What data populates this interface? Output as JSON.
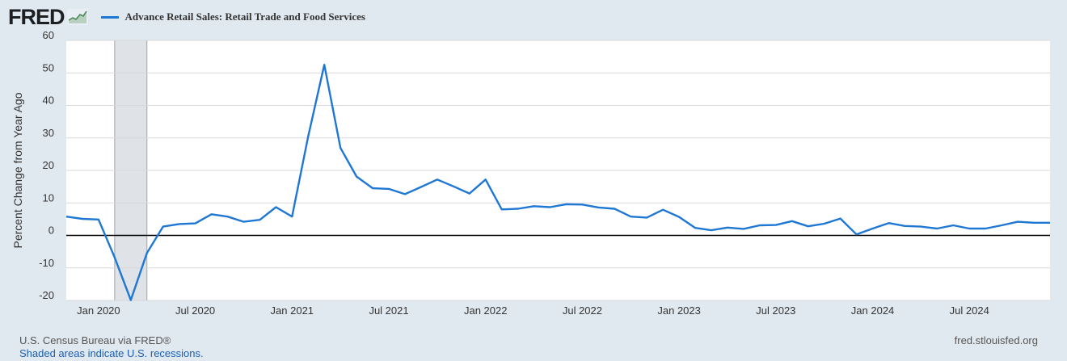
{
  "header": {
    "logo_text": "FRED",
    "logo_icon": "fred-logo-line-chart-icon"
  },
  "footer": {
    "source": "U.S. Census Bureau via FRED®",
    "note": "Shaded areas indicate U.S. recessions.",
    "site": "fred.stlouisfed.org"
  },
  "colors": {
    "line": "#1f77d4",
    "recession": "#dfe3e7",
    "background": "#e1e9f0",
    "plot": "#ffffff",
    "grid": "#d8d8d8",
    "zero_line": "#000000"
  },
  "chart_data": {
    "type": "line",
    "ylabel": "Percent Change from Year Ago",
    "xlabel": "",
    "ylim": [
      -20,
      60
    ],
    "yticks": [
      60,
      50,
      40,
      30,
      20,
      10,
      0,
      -10,
      -20
    ],
    "xlim": [
      "2019-11",
      "2024-12"
    ],
    "xticks": [
      {
        "date": "2020-01",
        "label": "Jan 2020"
      },
      {
        "date": "2020-07",
        "label": "Jul 2020"
      },
      {
        "date": "2021-01",
        "label": "Jan 2021"
      },
      {
        "date": "2021-07",
        "label": "Jul 2021"
      },
      {
        "date": "2022-01",
        "label": "Jan 2022"
      },
      {
        "date": "2022-07",
        "label": "Jul 2022"
      },
      {
        "date": "2023-01",
        "label": "Jan 2023"
      },
      {
        "date": "2023-07",
        "label": "Jul 2023"
      },
      {
        "date": "2024-01",
        "label": "Jan 2024"
      },
      {
        "date": "2024-07",
        "label": "Jul 2024"
      }
    ],
    "recessions": [
      {
        "start": "2020-02",
        "end": "2020-04"
      }
    ],
    "grid": true,
    "legend_position": "top-left",
    "series": [
      {
        "name": "Advance Retail Sales: Retail Trade and Food Services",
        "x": [
          "2019-11",
          "2019-12",
          "2020-01",
          "2020-02",
          "2020-03",
          "2020-04",
          "2020-05",
          "2020-06",
          "2020-07",
          "2020-08",
          "2020-09",
          "2020-10",
          "2020-11",
          "2020-12",
          "2021-01",
          "2021-02",
          "2021-03",
          "2021-04",
          "2021-05",
          "2021-06",
          "2021-07",
          "2021-08",
          "2021-09",
          "2021-10",
          "2021-11",
          "2021-12",
          "2022-01",
          "2022-02",
          "2022-03",
          "2022-04",
          "2022-05",
          "2022-06",
          "2022-07",
          "2022-08",
          "2022-09",
          "2022-10",
          "2022-11",
          "2022-12",
          "2023-01",
          "2023-02",
          "2023-03",
          "2023-04",
          "2023-05",
          "2023-06",
          "2023-07",
          "2023-08",
          "2023-09",
          "2023-10",
          "2023-11",
          "2023-12",
          "2024-01",
          "2024-02",
          "2024-03",
          "2024-04",
          "2024-05",
          "2024-06",
          "2024-07",
          "2024-08",
          "2024-09",
          "2024-10",
          "2024-11",
          "2024-12"
        ],
        "y": [
          5.8,
          5.1,
          4.9,
          -6.8,
          -19.9,
          -5.4,
          2.7,
          3.5,
          3.7,
          6.5,
          5.8,
          4.2,
          4.8,
          8.7,
          5.8,
          30.5,
          52.5,
          26.9,
          18.1,
          14.5,
          14.3,
          12.7,
          14.9,
          17.2,
          15.1,
          12.9,
          17.2,
          8.0,
          8.2,
          9.0,
          8.7,
          9.6,
          9.5,
          8.6,
          8.2,
          5.8,
          5.5,
          7.9,
          5.7,
          2.3,
          1.6,
          2.4,
          2.0,
          3.1,
          3.2,
          4.4,
          2.8,
          3.6,
          5.2,
          0.3,
          2.1,
          3.8,
          2.9,
          2.7,
          2.1,
          3.1,
          2.1,
          2.1,
          3.1,
          4.2,
          3.9,
          3.9
        ]
      }
    ]
  }
}
